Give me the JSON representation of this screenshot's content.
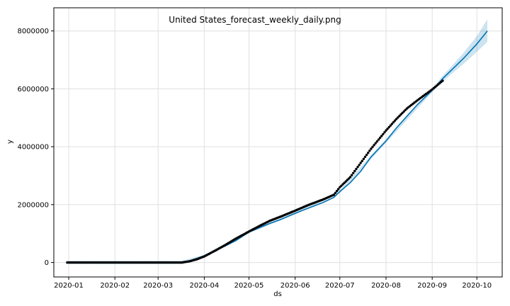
{
  "chart_data": {
    "type": "line",
    "title": "United States_forecast_weekly_daily.png",
    "xlabel": "ds",
    "ylabel": "y",
    "x_axis_type": "date",
    "xlim": [
      "2019-12-22",
      "2020-10-18"
    ],
    "ylim": [
      -500000,
      8800000
    ],
    "grid": true,
    "x_ticks": [
      "2020-01-01",
      "2020-02-01",
      "2020-03-01",
      "2020-04-01",
      "2020-05-01",
      "2020-06-01",
      "2020-07-01",
      "2020-08-01",
      "2020-09-01",
      "2020-10-01"
    ],
    "x_tick_labels": [
      "2020-01",
      "2020-02",
      "2020-03",
      "2020-04",
      "2020-05",
      "2020-06",
      "2020-07",
      "2020-08",
      "2020-09",
      "2020-10"
    ],
    "y_ticks": [
      0,
      2000000,
      4000000,
      6000000,
      8000000
    ],
    "y_tick_labels": [
      "0",
      "2000000",
      "4000000",
      "6000000",
      "8000000"
    ],
    "colors": {
      "forecast": "#0072B2",
      "band": "#0072B2",
      "observed": "#000000"
    },
    "forecast": {
      "x": [
        "2019-12-31",
        "2020-01-15",
        "2020-02-01",
        "2020-02-15",
        "2020-03-01",
        "2020-03-10",
        "2020-03-17",
        "2020-03-22",
        "2020-03-27",
        "2020-04-01",
        "2020-04-08",
        "2020-04-15",
        "2020-04-22",
        "2020-05-01",
        "2020-05-08",
        "2020-05-15",
        "2020-05-22",
        "2020-06-01",
        "2020-06-10",
        "2020-06-20",
        "2020-06-27",
        "2020-07-01",
        "2020-07-08",
        "2020-07-15",
        "2020-07-22",
        "2020-08-01",
        "2020-08-08",
        "2020-08-15",
        "2020-08-22",
        "2020-09-01",
        "2020-09-08",
        "2020-09-15",
        "2020-09-22",
        "2020-10-01",
        "2020-10-08"
      ],
      "y": [
        0,
        0,
        0,
        0,
        0,
        0,
        20000,
        60000,
        140000,
        230000,
        400000,
        570000,
        750000,
        1050000,
        1200000,
        1350000,
        1480000,
        1700000,
        1880000,
        2080000,
        2250000,
        2450000,
        2760000,
        3150000,
        3650000,
        4200000,
        4650000,
        5050000,
        5450000,
        5950000,
        6350000,
        6700000,
        7050000,
        7550000,
        8000000
      ]
    },
    "uncertainty_band": {
      "x": [
        "2019-12-31",
        "2020-03-17",
        "2020-04-01",
        "2020-05-01",
        "2020-06-01",
        "2020-07-01",
        "2020-08-01",
        "2020-09-01",
        "2020-09-08",
        "2020-09-15",
        "2020-09-22",
        "2020-10-01",
        "2020-10-08"
      ],
      "upper": [
        60000,
        60000,
        270000,
        1090000,
        1740000,
        2500000,
        4270000,
        6020000,
        6450000,
        6840000,
        7240000,
        7820000,
        8400000
      ],
      "lower": [
        -60000,
        -60000,
        190000,
        1010000,
        1660000,
        2400000,
        4130000,
        5880000,
        6250000,
        6560000,
        6860000,
        7280000,
        7620000
      ]
    },
    "observed": {
      "x": [
        "2019-12-31",
        "2020-03-17",
        "2020-03-22",
        "2020-03-27",
        "2020-04-01",
        "2020-04-08",
        "2020-04-15",
        "2020-04-22",
        "2020-05-01",
        "2020-05-08",
        "2020-05-15",
        "2020-05-22",
        "2020-06-01",
        "2020-06-10",
        "2020-06-20",
        "2020-06-27",
        "2020-07-01",
        "2020-07-08",
        "2020-07-15",
        "2020-07-22",
        "2020-08-01",
        "2020-08-08",
        "2020-08-15",
        "2020-08-22",
        "2020-09-01",
        "2020-09-08"
      ],
      "y": [
        0,
        0,
        40000,
        110000,
        210000,
        400000,
        600000,
        820000,
        1070000,
        1260000,
        1440000,
        1580000,
        1790000,
        1990000,
        2180000,
        2340000,
        2600000,
        2950000,
        3440000,
        3930000,
        4560000,
        4960000,
        5320000,
        5600000,
        5980000,
        6280000
      ]
    }
  }
}
